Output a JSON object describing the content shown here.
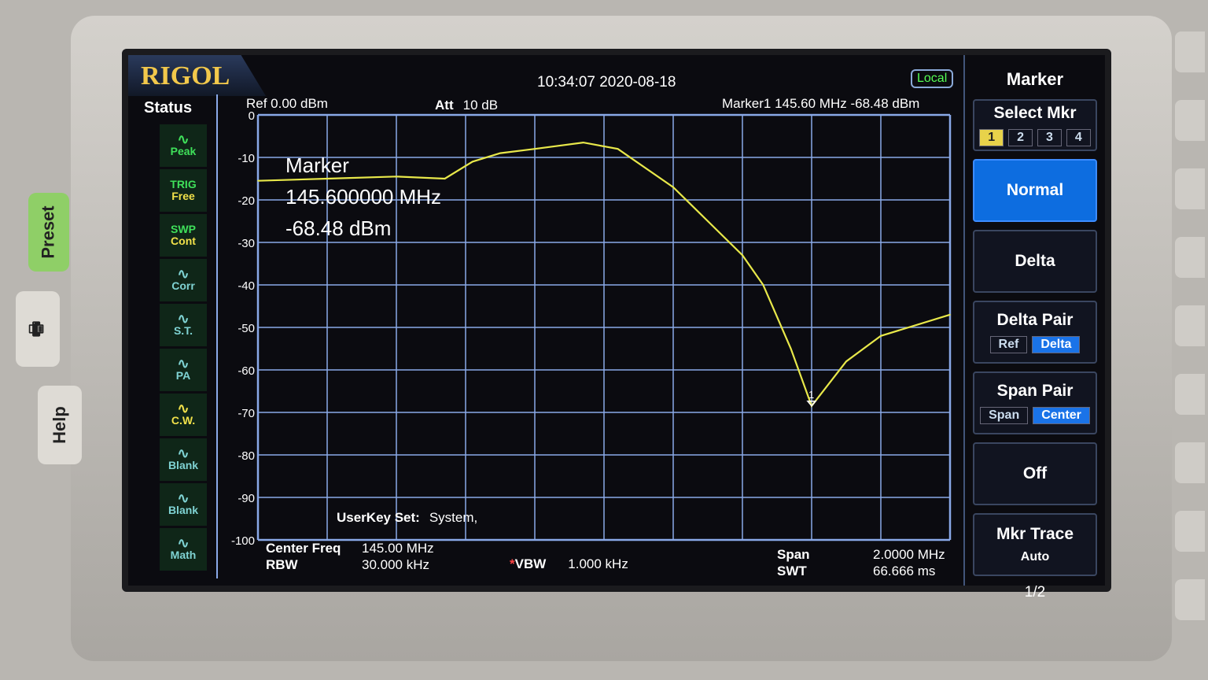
{
  "device": {
    "brand": "RIGOL",
    "preset": "Preset",
    "help": "Help",
    "print_icon": "printer-icon"
  },
  "header": {
    "datetime": "10:34:07 2020-08-18",
    "local": "Local",
    "ref": "Ref  0.00 dBm",
    "att_label": "Att",
    "att_value": "10 dB",
    "marker_readout": "Marker1   145.60 MHz   -68.48 dBm"
  },
  "status": {
    "title": "Status",
    "items": [
      {
        "top": "",
        "label": "Peak",
        "color": "#3fe05a",
        "icon": "peak-icon"
      },
      {
        "top": "TRIG",
        "label": "Free",
        "color": "#f0e04a",
        "icon": "trigger-icon"
      },
      {
        "top": "SWP",
        "label": "Cont",
        "color": "#f0e04a",
        "icon": "sweep-icon"
      },
      {
        "top": "",
        "label": "Corr",
        "color": "#7fd3d3",
        "icon": "correction-icon"
      },
      {
        "top": "",
        "label": "S.T.",
        "color": "#7fd3d3",
        "icon": "sweep-time-icon"
      },
      {
        "top": "",
        "label": "PA",
        "color": "#7fd3d3",
        "icon": "preamp-icon"
      },
      {
        "top": "",
        "label": "C.W.",
        "color": "#f0e04a",
        "icon": "cw-icon"
      },
      {
        "top": "",
        "label": "Blank",
        "color": "#7fd3d3",
        "icon": "trace-icon"
      },
      {
        "top": "",
        "label": "Blank",
        "color": "#7fd3d3",
        "icon": "trace-icon"
      },
      {
        "top": "",
        "label": "Math",
        "color": "#7fd3d3",
        "icon": "math-icon"
      }
    ]
  },
  "marker_box": {
    "title": "Marker",
    "freq": "145.600000 MHz",
    "level": "-68.48 dBm",
    "marker_label": "1"
  },
  "userkey": {
    "label": "UserKey Set:",
    "value": "System,"
  },
  "footer": {
    "center_label": "Center Freq",
    "center_value": "145.00 MHz",
    "rbw_label": "RBW",
    "rbw_value": "30.000 kHz",
    "vbw_mark": "*",
    "vbw_label": "VBW",
    "vbw_value": "1.000 kHz",
    "span_label": "Span",
    "span_value": "2.0000 MHz",
    "swt_label": "SWT",
    "swt_value": "66.666 ms"
  },
  "menu": {
    "title": "Marker",
    "select": "Select Mkr",
    "markers": [
      "1",
      "2",
      "3",
      "4"
    ],
    "normal": "Normal",
    "delta": "Delta",
    "delta_pair": "Delta Pair",
    "ref": "Ref",
    "delta_sub": "Delta",
    "span_pair": "Span Pair",
    "span": "Span",
    "center": "Center",
    "off": "Off",
    "mkr_trace": "Mkr Trace",
    "auto": "Auto",
    "page": "1/2"
  },
  "colors": {
    "trace": "#e8e84a",
    "grid": "#8aa9e8",
    "active": "#0d6de0"
  },
  "chart_data": {
    "type": "line",
    "title": "",
    "xlabel": "",
    "ylabel": "",
    "xlim": [
      144.0,
      146.0
    ],
    "ylim": [
      -100,
      0
    ],
    "grid": true,
    "yticks": [
      "0",
      "-10",
      "-20",
      "-30",
      "-40",
      "-50",
      "-60",
      "-70",
      "-80",
      "-90",
      "-100"
    ],
    "x": [
      144.0,
      144.2,
      144.4,
      144.54,
      144.62,
      144.7,
      144.8,
      144.94,
      145.04,
      145.2,
      145.3,
      145.4,
      145.46,
      145.54,
      145.6,
      145.7,
      145.8,
      146.0
    ],
    "y": [
      -15.5,
      -15,
      -14.5,
      -15,
      -11,
      -9,
      -8,
      -6.5,
      -8,
      -17,
      -25,
      -33,
      -40,
      -55,
      -68.48,
      -58,
      -52,
      -47
    ],
    "marker": {
      "x": 145.6,
      "y": -68.48
    }
  }
}
